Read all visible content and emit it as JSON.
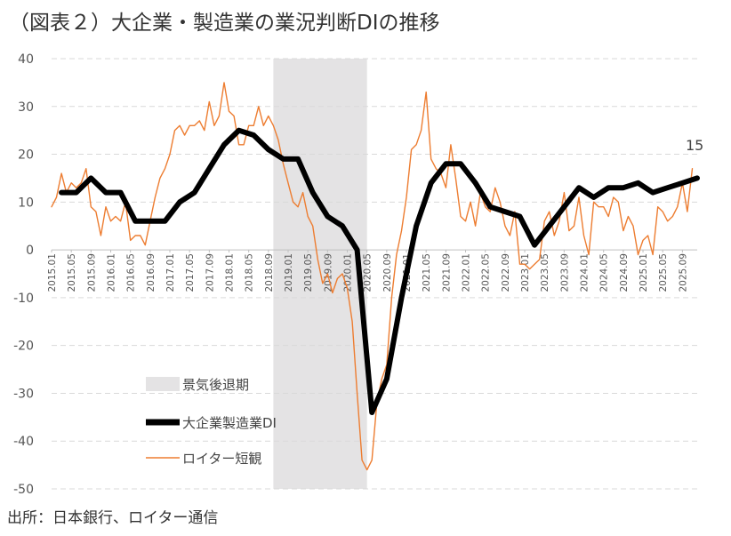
{
  "title": "（図表２）大企業・製造業の業況判断DIの推移",
  "source": "出所：日本銀行、ロイター通信",
  "chart_data": {
    "type": "line",
    "ylim": [
      -50,
      40
    ],
    "yticks": [
      40,
      30,
      20,
      10,
      0,
      -10,
      -20,
      -30,
      -40,
      -50
    ],
    "x_start": "2015.01",
    "x_end": "2025.12",
    "x_tick_labels": [
      "2015.01",
      "2015.05",
      "2015.09",
      "2016.01",
      "2016.05",
      "2016.09",
      "2017.01",
      "2017.05",
      "2017.09",
      "2018.01",
      "2018.05",
      "2018.09",
      "2019.01",
      "2019.05",
      "2019.09",
      "2020.01",
      "2020.05",
      "2020.09",
      "2021.01",
      "2021.05",
      "2021.09",
      "2022.01",
      "2022.05",
      "2022.09",
      "2023.01",
      "2023.05",
      "2023.09",
      "2024.01",
      "2024.05",
      "2024.09",
      "2025.01",
      "2025.05",
      "2025.09"
    ],
    "recession": {
      "start": "2018.10",
      "end": "2020.05",
      "color": "#e4e3e4"
    },
    "legend": {
      "recession_label": "景気後退期",
      "series_labels": [
        "大企業製造業DI",
        "ロイター短観"
      ]
    },
    "end_label": "15",
    "series": [
      {
        "name": "大企業製造業DI",
        "color": "#000000",
        "x": [
          "2015.03",
          "2015.06",
          "2015.09",
          "2015.12",
          "2016.03",
          "2016.06",
          "2016.09",
          "2016.12",
          "2017.03",
          "2017.06",
          "2017.09",
          "2017.12",
          "2018.03",
          "2018.06",
          "2018.09",
          "2018.12",
          "2019.03",
          "2019.06",
          "2019.09",
          "2019.12",
          "2020.03",
          "2020.06",
          "2020.09",
          "2020.12",
          "2021.03",
          "2021.06",
          "2021.09",
          "2021.12",
          "2022.03",
          "2022.06",
          "2022.09",
          "2022.12",
          "2023.03",
          "2023.06",
          "2023.09",
          "2023.12",
          "2024.03",
          "2024.06",
          "2024.09",
          "2024.12",
          "2025.03",
          "2025.06",
          "2025.09",
          "2025.12"
        ],
        "values": [
          12,
          12,
          15,
          12,
          12,
          6,
          6,
          6,
          10,
          12,
          17,
          22,
          25,
          24,
          21,
          19,
          19,
          12,
          7,
          5,
          0,
          -34,
          -27,
          -10,
          5,
          14,
          18,
          18,
          14,
          9,
          8,
          7,
          1,
          5,
          9,
          13,
          11,
          13,
          13,
          14,
          12,
          13,
          14,
          15
        ]
      },
      {
        "name": "ロイター短観",
        "color": "#ed7d31",
        "x": [
          "2015.01",
          "2015.02",
          "2015.03",
          "2015.04",
          "2015.05",
          "2015.06",
          "2015.07",
          "2015.08",
          "2015.09",
          "2015.10",
          "2015.11",
          "2015.12",
          "2016.01",
          "2016.02",
          "2016.03",
          "2016.04",
          "2016.05",
          "2016.06",
          "2016.07",
          "2016.08",
          "2016.09",
          "2016.10",
          "2016.11",
          "2016.12",
          "2017.01",
          "2017.02",
          "2017.03",
          "2017.04",
          "2017.05",
          "2017.06",
          "2017.07",
          "2017.08",
          "2017.09",
          "2017.10",
          "2017.11",
          "2017.12",
          "2018.01",
          "2018.02",
          "2018.03",
          "2018.04",
          "2018.05",
          "2018.06",
          "2018.07",
          "2018.08",
          "2018.09",
          "2018.10",
          "2018.11",
          "2018.12",
          "2019.01",
          "2019.02",
          "2019.03",
          "2019.04",
          "2019.05",
          "2019.06",
          "2019.07",
          "2019.08",
          "2019.09",
          "2019.10",
          "2019.11",
          "2019.12",
          "2020.01",
          "2020.02",
          "2020.03",
          "2020.04",
          "2020.05",
          "2020.06",
          "2020.07",
          "2020.08",
          "2020.09",
          "2020.10",
          "2020.11",
          "2020.12",
          "2021.01",
          "2021.02",
          "2021.03",
          "2021.04",
          "2021.05",
          "2021.06",
          "2021.07",
          "2021.08",
          "2021.09",
          "2021.10",
          "2021.11",
          "2021.12",
          "2022.01",
          "2022.02",
          "2022.03",
          "2022.04",
          "2022.05",
          "2022.06",
          "2022.07",
          "2022.08",
          "2022.09",
          "2022.10",
          "2022.11",
          "2022.12",
          "2023.01",
          "2023.02",
          "2023.03",
          "2023.04",
          "2023.05",
          "2023.06",
          "2023.07",
          "2023.08",
          "2023.09",
          "2023.10",
          "2023.11",
          "2023.12",
          "2024.01",
          "2024.02",
          "2024.03",
          "2024.04",
          "2024.05",
          "2024.06",
          "2024.07",
          "2024.08",
          "2024.09",
          "2024.10",
          "2024.11",
          "2024.12",
          "2025.01",
          "2025.02",
          "2025.03",
          "2025.04",
          "2025.05",
          "2025.06",
          "2025.07",
          "2025.08",
          "2025.09",
          "2025.10",
          "2025.11"
        ],
        "values": [
          9,
          11,
          16,
          12,
          14,
          13,
          14,
          17,
          9,
          8,
          3,
          9,
          6,
          7,
          6,
          10,
          2,
          3,
          3,
          1,
          6,
          11,
          15,
          17,
          20,
          25,
          26,
          24,
          26,
          26,
          27,
          25,
          31,
          26,
          28,
          35,
          29,
          28,
          22,
          22,
          26,
          26,
          30,
          26,
          28,
          26,
          23,
          18,
          14,
          10,
          9,
          12,
          7,
          5,
          -2,
          -7,
          -5,
          -9,
          -6,
          -5,
          -8,
          -15,
          -30,
          -44,
          -46,
          -44,
          -32,
          -27,
          -24,
          -10,
          -1,
          4,
          11,
          21,
          22,
          25,
          33,
          19,
          17,
          16,
          13,
          22,
          15,
          7,
          6,
          10,
          5,
          12,
          9,
          8,
          13,
          10,
          5,
          3,
          8,
          -3,
          -3,
          -4,
          -3,
          -2,
          6,
          8,
          3,
          6,
          12,
          4,
          5,
          11,
          3,
          -1,
          10,
          9,
          9,
          7,
          11,
          10,
          4,
          7,
          5,
          -1,
          2,
          3,
          -1,
          9,
          8,
          6,
          7,
          9,
          14,
          8,
          17
        ]
      }
    ]
  }
}
